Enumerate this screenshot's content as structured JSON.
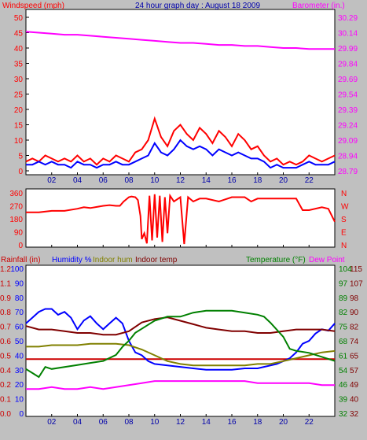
{
  "colors": {
    "red": "#ff0000",
    "blue": "#0000ff",
    "magenta": "#ff00ff",
    "olive": "#808000",
    "green": "#008000",
    "maroon": "#800000",
    "darkblue": "#0000aa",
    "darkred": "#cc0000"
  },
  "header": {
    "left": "Windspeed (mph)",
    "center": "24 hour graph day : August 18 2009",
    "right": "Barometer (in.)"
  },
  "x_ticks": [
    "02",
    "04",
    "06",
    "08",
    "10",
    "12",
    "14",
    "16",
    "18",
    "20",
    "22"
  ],
  "lower_header": {
    "rainfall": "Rainfall (in)",
    "humidity": "Humidity %",
    "indoor_hum": "Indoor hum",
    "indoor_temp": "Indoor temp",
    "temperature": "Temperature (°F)",
    "dew_point": "Dew Point"
  },
  "chart_data": [
    {
      "type": "line",
      "name": "wind-barometer",
      "x_range": [
        0,
        24
      ],
      "left_axis": {
        "title": "Windspeed (mph)",
        "ticks": [
          "50",
          "45",
          "40",
          "35",
          "30",
          "25",
          "20",
          "15",
          "10",
          "5",
          "0"
        ],
        "range": [
          0,
          50
        ]
      },
      "right_axis": {
        "title": "Barometer (in.)",
        "ticks": [
          "30.29",
          "30.14",
          "29.99",
          "29.84",
          "29.69",
          "29.54",
          "29.39",
          "29.24",
          "29.09",
          "28.94",
          "28.79"
        ],
        "range": [
          28.79,
          30.29
        ]
      },
      "series": [
        {
          "color": "magenta",
          "axis": "right",
          "x": [
            0,
            1,
            2,
            3,
            4,
            5,
            6,
            7,
            8,
            9,
            10,
            11,
            12,
            13,
            14,
            15,
            16,
            17,
            18,
            19,
            20,
            21,
            22,
            23,
            24
          ],
          "y": [
            30.15,
            30.14,
            30.13,
            30.12,
            30.12,
            30.11,
            30.1,
            30.09,
            30.08,
            30.07,
            30.06,
            30.05,
            30.04,
            30.04,
            30.03,
            30.02,
            30.02,
            30.01,
            30.01,
            30.0,
            29.99,
            29.99,
            29.98,
            29.98,
            29.98
          ]
        },
        {
          "color": "red",
          "axis": "left",
          "x": [
            0,
            0.5,
            1,
            1.5,
            2,
            2.5,
            3,
            3.5,
            4,
            4.5,
            5,
            5.5,
            6,
            6.5,
            7,
            7.5,
            8,
            8.5,
            9,
            9.5,
            10,
            10.5,
            11,
            11.5,
            12,
            12.5,
            13,
            13.5,
            14,
            14.5,
            15,
            15.5,
            16,
            16.5,
            17,
            17.5,
            18,
            18.5,
            19,
            19.5,
            20,
            20.5,
            21,
            21.5,
            22,
            22.5,
            23,
            23.5,
            24
          ],
          "y": [
            3,
            4,
            3,
            5,
            4,
            3,
            4,
            3,
            5,
            3,
            4,
            2,
            4,
            3,
            5,
            4,
            3,
            6,
            7,
            10,
            17,
            11,
            8,
            13,
            15,
            12,
            10,
            14,
            12,
            9,
            13,
            11,
            8,
            12,
            10,
            7,
            8,
            5,
            3,
            4,
            2,
            3,
            2,
            3,
            5,
            4,
            3,
            4,
            5
          ]
        },
        {
          "color": "blue",
          "axis": "left",
          "x": [
            0,
            0.5,
            1,
            1.5,
            2,
            2.5,
            3,
            3.5,
            4,
            4.5,
            5,
            5.5,
            6,
            6.5,
            7,
            7.5,
            8,
            8.5,
            9,
            9.5,
            10,
            10.5,
            11,
            11.5,
            12,
            12.5,
            13,
            13.5,
            14,
            14.5,
            15,
            15.5,
            16,
            16.5,
            17,
            17.5,
            18,
            18.5,
            19,
            19.5,
            20,
            20.5,
            21,
            21.5,
            22,
            22.5,
            23,
            23.5,
            24
          ],
          "y": [
            2,
            2,
            3,
            2,
            3,
            2,
            2,
            1,
            3,
            2,
            2,
            1,
            2,
            2,
            3,
            2,
            2,
            3,
            4,
            5,
            9,
            6,
            5,
            7,
            10,
            8,
            7,
            8,
            7,
            5,
            7,
            6,
            5,
            6,
            5,
            4,
            4,
            3,
            1,
            2,
            1,
            1,
            1,
            2,
            3,
            2,
            2,
            2,
            3
          ]
        }
      ]
    },
    {
      "type": "line",
      "name": "wind-direction",
      "x_range": [
        0,
        24
      ],
      "left_axis": {
        "ticks": [
          "360",
          "270",
          "180",
          "90",
          "0"
        ],
        "range": [
          0,
          360
        ]
      },
      "right_axis": {
        "ticks": [
          "N",
          "W",
          "S",
          "E",
          "N"
        ]
      },
      "series": [
        {
          "color": "red",
          "axis": "left",
          "x": [
            0,
            1,
            2,
            3,
            4,
            4.5,
            5,
            6,
            6.5,
            7,
            7.3,
            7.6,
            8,
            8.2,
            8.5,
            8.7,
            8.9,
            9.0,
            9.2,
            9.4,
            9.6,
            9.8,
            10.0,
            10.2,
            10.4,
            10.6,
            10.8,
            11,
            11.2,
            11.5,
            12,
            12.3,
            12.6,
            13,
            13.5,
            14,
            15,
            16,
            17,
            17.5,
            18,
            19,
            20,
            21,
            21.5,
            22,
            23,
            23.5,
            24
          ],
          "y": [
            225,
            225,
            235,
            235,
            250,
            260,
            255,
            270,
            275,
            270,
            270,
            300,
            330,
            335,
            330,
            310,
            200,
            40,
            80,
            10,
            340,
            30,
            350,
            50,
            340,
            20,
            330,
            80,
            340,
            300,
            330,
            5,
            330,
            300,
            320,
            320,
            300,
            330,
            330,
            300,
            320,
            320,
            320,
            320,
            240,
            240,
            260,
            250,
            160
          ]
        }
      ]
    },
    {
      "type": "line",
      "name": "humidity-temperature",
      "x_range": [
        0,
        24
      ],
      "left_axis_rain": {
        "title": "Rainfall (in)",
        "ticks": [
          "1.2",
          "1.1",
          "0.9",
          "0.8",
          "0.7",
          "0.6",
          "0.5",
          "0.4",
          "0.2",
          "0.1",
          "0.0"
        ],
        "range": [
          0,
          1.2
        ]
      },
      "left_axis_hum": {
        "title": "Humidity %",
        "ticks": [
          "100",
          "90",
          "80",
          "70",
          "60",
          "50",
          "40",
          "30",
          "20",
          "10",
          "0"
        ],
        "range": [
          0,
          100
        ]
      },
      "right_axis_in": {
        "ticks": [
          "115",
          "107",
          "98",
          "90",
          "82",
          "74",
          "65",
          "57",
          "49",
          "40",
          "32"
        ],
        "range": [
          32,
          115
        ]
      },
      "right_axis_out": {
        "title": "Temperature (°F)",
        "ticks": [
          "104",
          "97",
          "89",
          "82",
          "75",
          "68",
          "61",
          "54",
          "46",
          "39",
          "32"
        ],
        "range": [
          32,
          104
        ]
      },
      "series": [
        {
          "label": "Rainfall",
          "color": "darkred",
          "x": [
            0,
            24
          ],
          "y": [
            0.5,
            0.5
          ]
        },
        {
          "label": "Humidity %",
          "color": "blue",
          "x": [
            0,
            0.5,
            1,
            1.5,
            2,
            2.5,
            3,
            3.5,
            4,
            4.5,
            5,
            5.5,
            6,
            6.5,
            7,
            7.5,
            8,
            8.5,
            9,
            9.5,
            10,
            11,
            12,
            13,
            14,
            15,
            16,
            17,
            18,
            18.5,
            19,
            19.5,
            20,
            20.5,
            21,
            21.5,
            22,
            22.5,
            23,
            23.5,
            24
          ],
          "y": [
            62,
            66,
            70,
            72,
            72,
            68,
            70,
            66,
            58,
            64,
            67,
            62,
            58,
            62,
            66,
            62,
            50,
            42,
            40,
            36,
            34,
            33,
            32,
            31,
            30,
            30,
            30,
            31,
            31,
            32,
            33,
            34,
            36,
            38,
            42,
            48,
            50,
            55,
            58,
            57,
            62
          ]
        },
        {
          "label": "Indoor hum",
          "color": "olive",
          "x": [
            0,
            1,
            2,
            3,
            4,
            5,
            6,
            7,
            8,
            9,
            10,
            11,
            12,
            13,
            14,
            15,
            16,
            17,
            18,
            19,
            20,
            21,
            22,
            23,
            24
          ],
          "y": [
            46,
            46,
            47,
            47,
            47,
            48,
            48,
            48,
            47,
            44,
            40,
            36,
            34,
            33,
            33,
            33,
            33,
            33,
            34,
            34,
            36,
            38,
            40,
            42,
            43
          ]
        },
        {
          "label": "Indoor temp",
          "color": "maroon",
          "x": [
            0,
            1,
            2,
            3,
            4,
            5,
            6,
            7,
            8,
            9,
            10,
            11,
            12,
            13,
            14,
            15,
            16,
            17,
            18,
            19,
            20,
            21,
            22,
            23,
            24
          ],
          "y": [
            82,
            80,
            80,
            79,
            78,
            78,
            77,
            77,
            79,
            84,
            86,
            87,
            85,
            83,
            81,
            80,
            79,
            79,
            78,
            78,
            79,
            80,
            80,
            80,
            79
          ]
        },
        {
          "label": "Temperature",
          "color": "green",
          "x": [
            0,
            0.5,
            1,
            1.5,
            2,
            3,
            4,
            5,
            6,
            7,
            7.5,
            8,
            8.5,
            9,
            10,
            11,
            12,
            13,
            14,
            15,
            16,
            17,
            18,
            18.5,
            19,
            20,
            20.5,
            21,
            22,
            23,
            24
          ],
          "y": [
            54,
            52,
            50,
            55,
            54,
            55,
            56,
            57,
            58,
            61,
            65,
            68,
            72,
            74,
            78,
            80,
            80,
            82,
            83,
            83,
            83,
            82,
            81,
            80,
            77,
            70,
            64,
            63,
            62,
            60,
            58
          ]
        },
        {
          "label": "Dew Point",
          "color": "magenta",
          "x": [
            0,
            1,
            2,
            3,
            4,
            5,
            6,
            7,
            8,
            9,
            10,
            11,
            12,
            13,
            14,
            15,
            16,
            17,
            18,
            19,
            20,
            21,
            22,
            23,
            24
          ],
          "y": [
            44,
            44,
            45,
            44,
            44,
            45,
            44,
            45,
            46,
            47,
            48,
            48,
            48,
            48,
            48,
            48,
            48,
            48,
            47,
            47,
            47,
            47,
            47,
            46,
            46
          ]
        }
      ]
    }
  ]
}
